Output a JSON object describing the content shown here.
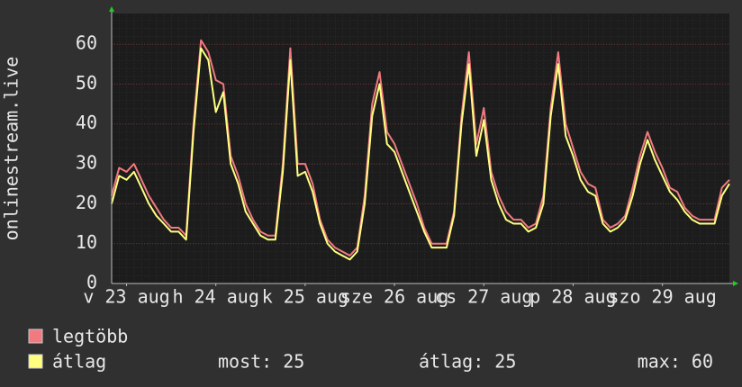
{
  "chart_data": {
    "type": "line",
    "y_label": "onlinestream.live",
    "x": [
      8,
      10,
      12,
      14,
      16,
      18,
      20,
      22,
      24,
      26,
      28,
      30,
      32,
      34,
      36,
      38,
      40,
      42,
      44,
      46,
      48,
      50,
      52,
      54,
      56,
      58,
      60,
      62,
      64,
      66,
      68,
      70,
      72,
      74,
      76,
      78,
      80,
      82,
      84,
      86,
      88,
      90,
      92,
      94,
      96,
      98,
      100,
      102,
      104,
      106,
      108,
      110,
      112,
      114,
      116,
      118,
      120,
      122,
      124,
      126,
      128,
      130,
      132,
      134,
      136,
      138,
      140,
      142,
      144,
      146,
      148,
      150,
      152,
      154,
      156,
      158,
      160,
      162,
      164,
      166,
      168,
      170,
      172,
      174
    ],
    "series": [
      {
        "name": "legtöbb",
        "color": "#f07a80",
        "values": [
          22,
          29,
          28,
          30,
          26,
          22,
          19,
          16,
          14,
          14,
          12,
          40,
          61,
          58,
          51,
          50,
          32,
          27,
          20,
          16,
          13,
          12,
          12,
          30,
          59,
          30,
          30,
          25,
          16,
          11,
          9,
          8,
          7,
          9,
          22,
          45,
          53,
          38,
          35,
          30,
          25,
          20,
          14,
          10,
          10,
          10,
          18,
          42,
          58,
          35,
          44,
          28,
          22,
          18,
          16,
          16,
          14,
          15,
          22,
          44,
          58,
          40,
          34,
          28,
          25,
          24,
          16,
          14,
          15,
          17,
          24,
          32,
          38,
          33,
          29,
          24,
          23,
          19,
          17,
          16,
          16,
          16,
          24,
          26
        ]
      },
      {
        "name": "átlag",
        "color": "#ffff80",
        "values": [
          20,
          27,
          26,
          28,
          24,
          20,
          17,
          15,
          13,
          13,
          11,
          38,
          59,
          56,
          43,
          48,
          30,
          25,
          18,
          15,
          12,
          11,
          11,
          28,
          56,
          27,
          28,
          23,
          15,
          10,
          8,
          7,
          6,
          8,
          20,
          42,
          50,
          35,
          33,
          28,
          23,
          18,
          13,
          9,
          9,
          9,
          17,
          40,
          55,
          32,
          41,
          26,
          20,
          16,
          15,
          15,
          13,
          14,
          20,
          42,
          55,
          37,
          32,
          26,
          23,
          22,
          15,
          13,
          14,
          16,
          22,
          30,
          36,
          31,
          27,
          23,
          21,
          18,
          16,
          15,
          15,
          15,
          22,
          25
        ]
      }
    ],
    "xlim": [
      8,
      174
    ],
    "xticks": [
      {
        "value": 12,
        "label": "v 23 aug"
      },
      {
        "value": 36,
        "label": "h 24 aug"
      },
      {
        "value": 60,
        "label": "k 25 aug"
      },
      {
        "value": 84,
        "label": "sze 26 aug"
      },
      {
        "value": 108,
        "label": "cs 27 aug"
      },
      {
        "value": 132,
        "label": "p 28 aug"
      },
      {
        "value": 156,
        "label": "szo 29 aug"
      }
    ],
    "ylim": [
      0,
      67.7
    ],
    "yticks": [
      0,
      10,
      20,
      30,
      40,
      50,
      60
    ],
    "grid": true,
    "legend_stats": [
      "most: 25",
      "átlag: 25",
      "max: 60"
    ]
  }
}
